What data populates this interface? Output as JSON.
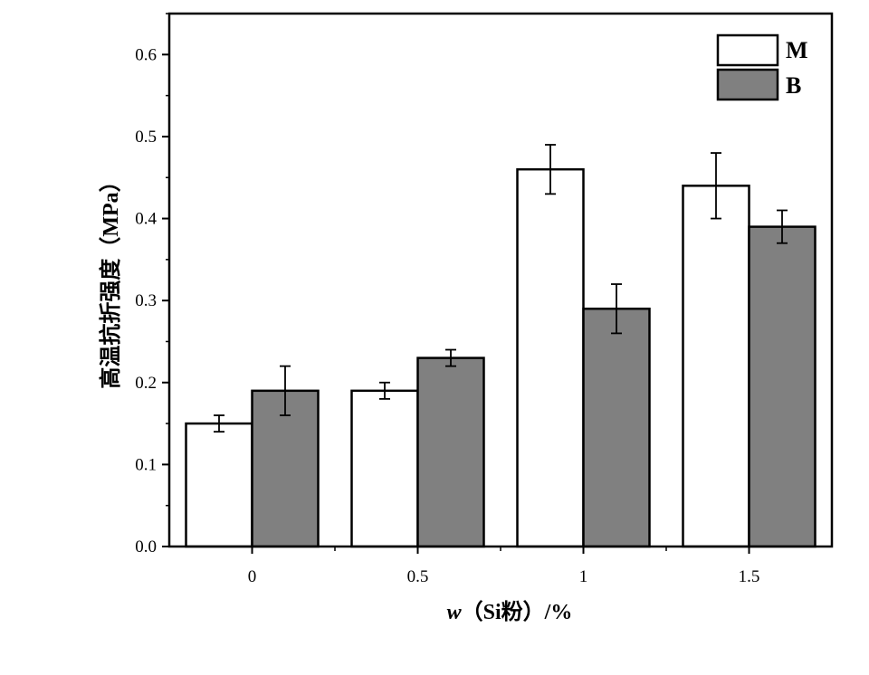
{
  "chart_data": {
    "type": "bar",
    "categories": [
      "0",
      "0.5",
      "1",
      "1.5"
    ],
    "series": [
      {
        "name": "M",
        "values": [
          0.15,
          0.19,
          0.46,
          0.44
        ],
        "errors": [
          0.01,
          0.01,
          0.03,
          0.04
        ],
        "color": "#ffffff"
      },
      {
        "name": "B",
        "values": [
          0.19,
          0.23,
          0.29,
          0.39
        ],
        "errors": [
          0.03,
          0.01,
          0.03,
          0.02
        ],
        "color": "#808080"
      }
    ],
    "ylim": [
      0.0,
      0.65
    ],
    "yticks": [
      "0.0",
      "0.1",
      "0.2",
      "0.3",
      "0.4",
      "0.5",
      "0.6"
    ],
    "xlabel": {
      "italic": "w",
      "rest": "（Si粉）/%"
    },
    "ylabel": "高温抗折强度（MPa）",
    "legend_position": "top-right",
    "grid": false
  }
}
